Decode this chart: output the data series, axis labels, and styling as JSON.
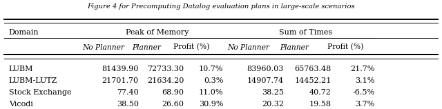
{
  "title": "Figure 4 for Precomputing Datalog evaluation plans in large-scale scenarios",
  "col_domain": "Domain",
  "group1_label": "Peak of Memory",
  "group2_label": "Sum of Times",
  "sub_cols": [
    "No Planner",
    "Planner",
    "Profit (%)"
  ],
  "rows": [
    {
      "domain": "LUBM",
      "mem_no": "81439.90",
      "mem_pl": "72733.30",
      "mem_profit": "10.7%",
      "time_no": "83960.03",
      "time_pl": "65763.48",
      "time_profit": "21.7%"
    },
    {
      "domain": "LUBM-LUTZ",
      "mem_no": "21701.70",
      "mem_pl": "21634.20",
      "mem_profit": "0.3%",
      "time_no": "14907.74",
      "time_pl": "14452.21",
      "time_profit": "3.1%"
    },
    {
      "domain": "Stock Exchange",
      "mem_no": "77.40",
      "mem_pl": "68.90",
      "mem_profit": "11.0%",
      "time_no": "38.25",
      "time_pl": "40.72",
      "time_profit": "-6.5%"
    },
    {
      "domain": "Vicodi",
      "mem_no": "38.50",
      "mem_pl": "26.60",
      "mem_profit": "30.9%",
      "time_no": "20.32",
      "time_pl": "19.58",
      "time_profit": "3.7%"
    }
  ],
  "figsize": [
    6.4,
    1.58
  ],
  "dpi": 100,
  "font_size": 8.0,
  "title_font_size": 7.2
}
